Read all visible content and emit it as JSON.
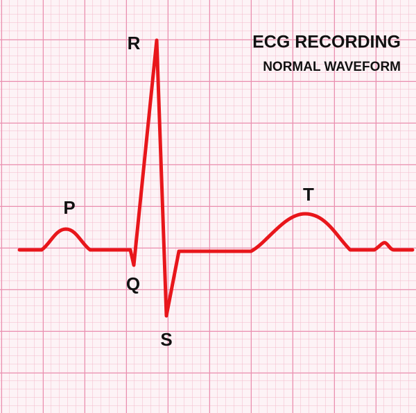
{
  "header": {
    "title": "ECG RECORDING",
    "subtitle": "NORMAL WAVEFORM"
  },
  "waves": [
    {
      "label": "P"
    },
    {
      "label": "Q"
    },
    {
      "label": "R"
    },
    {
      "label": "S"
    },
    {
      "label": "T"
    }
  ]
}
